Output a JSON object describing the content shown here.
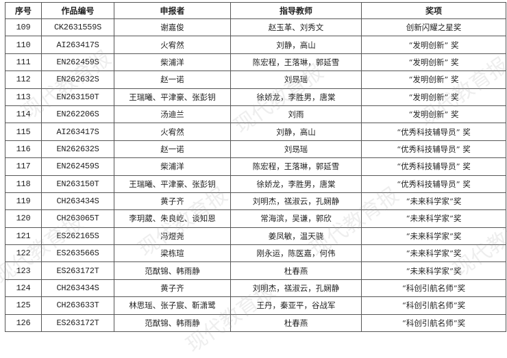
{
  "watermark": "现代教育报",
  "table": {
    "headers": [
      "序号",
      "作品编号",
      "申报者",
      "指导教师",
      "奖项"
    ],
    "rows": [
      [
        "109",
        "CK2631559S",
        "谢嘉俊",
        "赵玉革、刘秀文",
        "创新闪耀之星奖"
      ],
      [
        "110",
        "AI263417S",
        "火宥然",
        "刘静，高山",
        "“发明创新” 奖"
      ],
      [
        "111",
        "EN262459S",
        "柴浦洋",
        "陈宏程，王落琳，郭延雪",
        "“发明创新” 奖"
      ],
      [
        "112",
        "EN262632S",
        "赵一诺",
        "刘昮瑶",
        "“发明创新” 奖"
      ],
      [
        "113",
        "EN263150T",
        "王瑞曦、平津豪、张彭钥",
        "徐娇龙，李胜男，唐棠",
        "“发明创新” 奖"
      ],
      [
        "114",
        "EN262206S",
        "汤迪兰",
        "刘雨",
        "“发明创新” 奖"
      ],
      [
        "115",
        "AI263417S",
        "火宥然",
        "刘静，高山",
        "“优秀科技辅导员” 奖"
      ],
      [
        "116",
        "EN262632S",
        "赵一诺",
        "刘昮瑶",
        "“优秀科技辅导员” 奖"
      ],
      [
        "117",
        "EN262459S",
        "柴浦洋",
        "陈宏程，王落琳，郭延雪",
        "“优秀科技辅导员” 奖"
      ],
      [
        "118",
        "EN263150T",
        "王瑞曦、平津豪、张彭钥",
        "徐娇龙，李胜男，唐棠",
        "“优秀科技辅导员” 奖"
      ],
      [
        "119",
        "CH263434S",
        "黄子齐",
        "刘明杰，禚淑云，孔娴静",
        "“未来科学家”奖"
      ],
      [
        "120",
        "CH263065T",
        "李玥葳、朱良屹、谈知恩",
        "常海滨，吴谦，郭欣",
        "“未来科学家”奖"
      ],
      [
        "121",
        "ES262165S",
        "冯煜尧",
        "姜凤敏，温天骁",
        "“未来科学家”奖"
      ],
      [
        "122",
        "ES263566S",
        "梁栋瑄",
        "刚永运，陈医嘉，何伟",
        "“未来科学家”奖"
      ],
      [
        "123",
        "ES263172T",
        "范猷锦、韩雨静",
        "杜春燕",
        "“未来科学家”奖"
      ],
      [
        "124",
        "CH263434S",
        "黄子齐",
        "刘明杰，禚淑云，孔娴静",
        "“科创引航名师”奖"
      ],
      [
        "125",
        "CH263633T",
        "林思瑶、张子宸、靳潇鹭",
        "王丹，秦亚平，谷战军",
        "“科创引航名师”奖"
      ],
      [
        "126",
        "ES263172T",
        "范猷锦、韩雨静",
        "杜春燕",
        "“科创引航名师”奖"
      ]
    ]
  }
}
